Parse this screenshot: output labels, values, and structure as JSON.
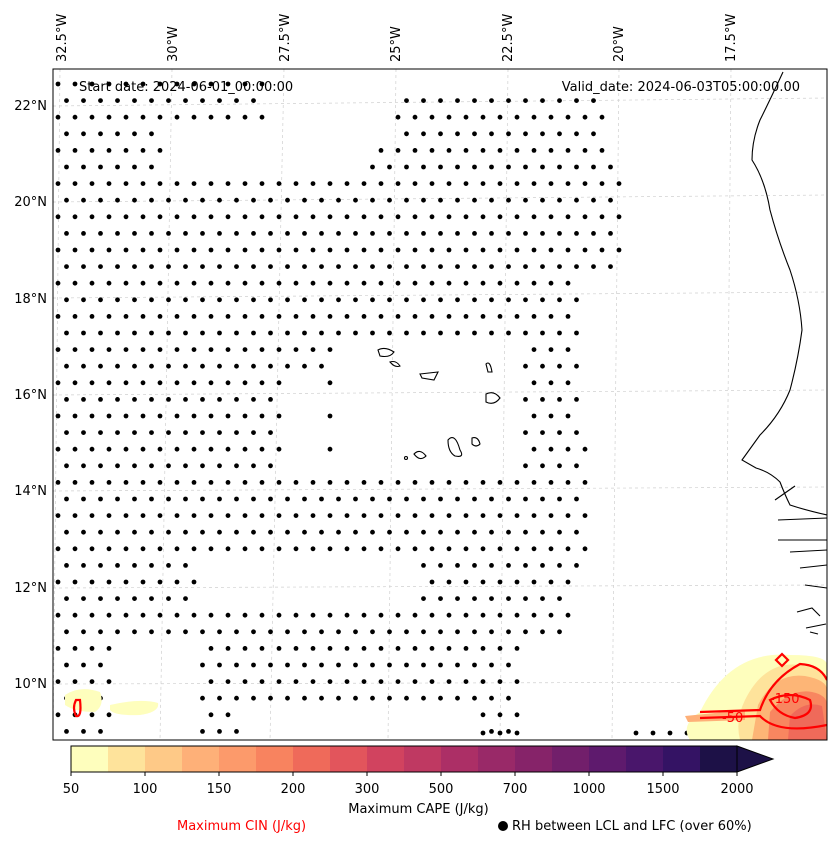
{
  "map": {
    "start_date": "Start date: 2024-06-01_00:00:00",
    "valid_date": "Valid_date: 2024-06-03T05:00:00.00",
    "lon_labels": [
      "32.5°W",
      "30°W",
      "27.5°W",
      "25°W",
      "22.5°W",
      "20°W",
      "17.5°W"
    ],
    "lat_labels": [
      "22°N",
      "20°N",
      "18°N",
      "16°N",
      "14°N",
      "12°N",
      "10°N"
    ],
    "cin_contour_labels": [
      "-150",
      "-50"
    ]
  },
  "colorbar": {
    "label": "Maximum CAPE (J/kg)",
    "ticks": [
      "50",
      "100",
      "150",
      "200",
      "300",
      "500",
      "700",
      "1000",
      "1500",
      "2000"
    ],
    "colors": [
      "#fefebd",
      "#fee39b",
      "#fec987",
      "#feb078",
      "#fc9a6b",
      "#f8835f",
      "#ef6a5a",
      "#e2555c",
      "#d1435f",
      "#bf3962",
      "#ac2f66",
      "#992968",
      "#862369",
      "#721f6b",
      "#5e1a6d",
      "#49166b",
      "#341364",
      "#1d1147"
    ]
  },
  "legend": {
    "cin_label": "Maximum CIN (J/kg)",
    "rh_label": "RH between LCL and LFC (over 60%)"
  }
}
